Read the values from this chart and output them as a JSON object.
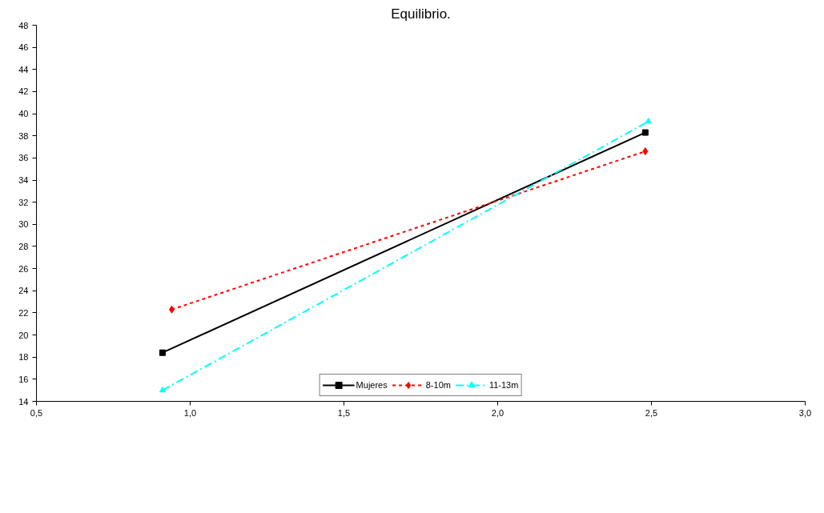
{
  "chart_data": {
    "type": "line",
    "title": "Equilibrio.",
    "xlim": [
      0.5,
      3.0
    ],
    "ylim": [
      14,
      48
    ],
    "xticks": [
      {
        "value": 0.5,
        "label": "0,5"
      },
      {
        "value": 1.0,
        "label": "1,0"
      },
      {
        "value": 1.5,
        "label": "1,5"
      },
      {
        "value": 2.0,
        "label": "2,0"
      },
      {
        "value": 2.5,
        "label": "2,5"
      },
      {
        "value": 3.0,
        "label": "3,0"
      }
    ],
    "yticks": [
      14,
      16,
      18,
      20,
      22,
      24,
      26,
      28,
      30,
      32,
      34,
      36,
      38,
      40,
      42,
      44,
      46,
      48
    ],
    "grid": false,
    "legend": "bottom",
    "series": [
      {
        "name": "Mujeres",
        "color": "#000000",
        "x": [
          0.91,
          2.48
        ],
        "values": [
          18.4,
          38.3
        ],
        "marker": "square",
        "line_style": "solid"
      },
      {
        "name": "8-10m",
        "color": "#ff0000",
        "x": [
          0.94,
          2.48
        ],
        "values": [
          22.3,
          36.6
        ],
        "marker": "diamond",
        "line_style": "dotted"
      },
      {
        "name": "11-13m",
        "color": "#00ffff",
        "x": [
          0.91,
          2.49
        ],
        "values": [
          15.0,
          39.3
        ],
        "marker": "triangle",
        "line_style": "dashed"
      }
    ]
  }
}
